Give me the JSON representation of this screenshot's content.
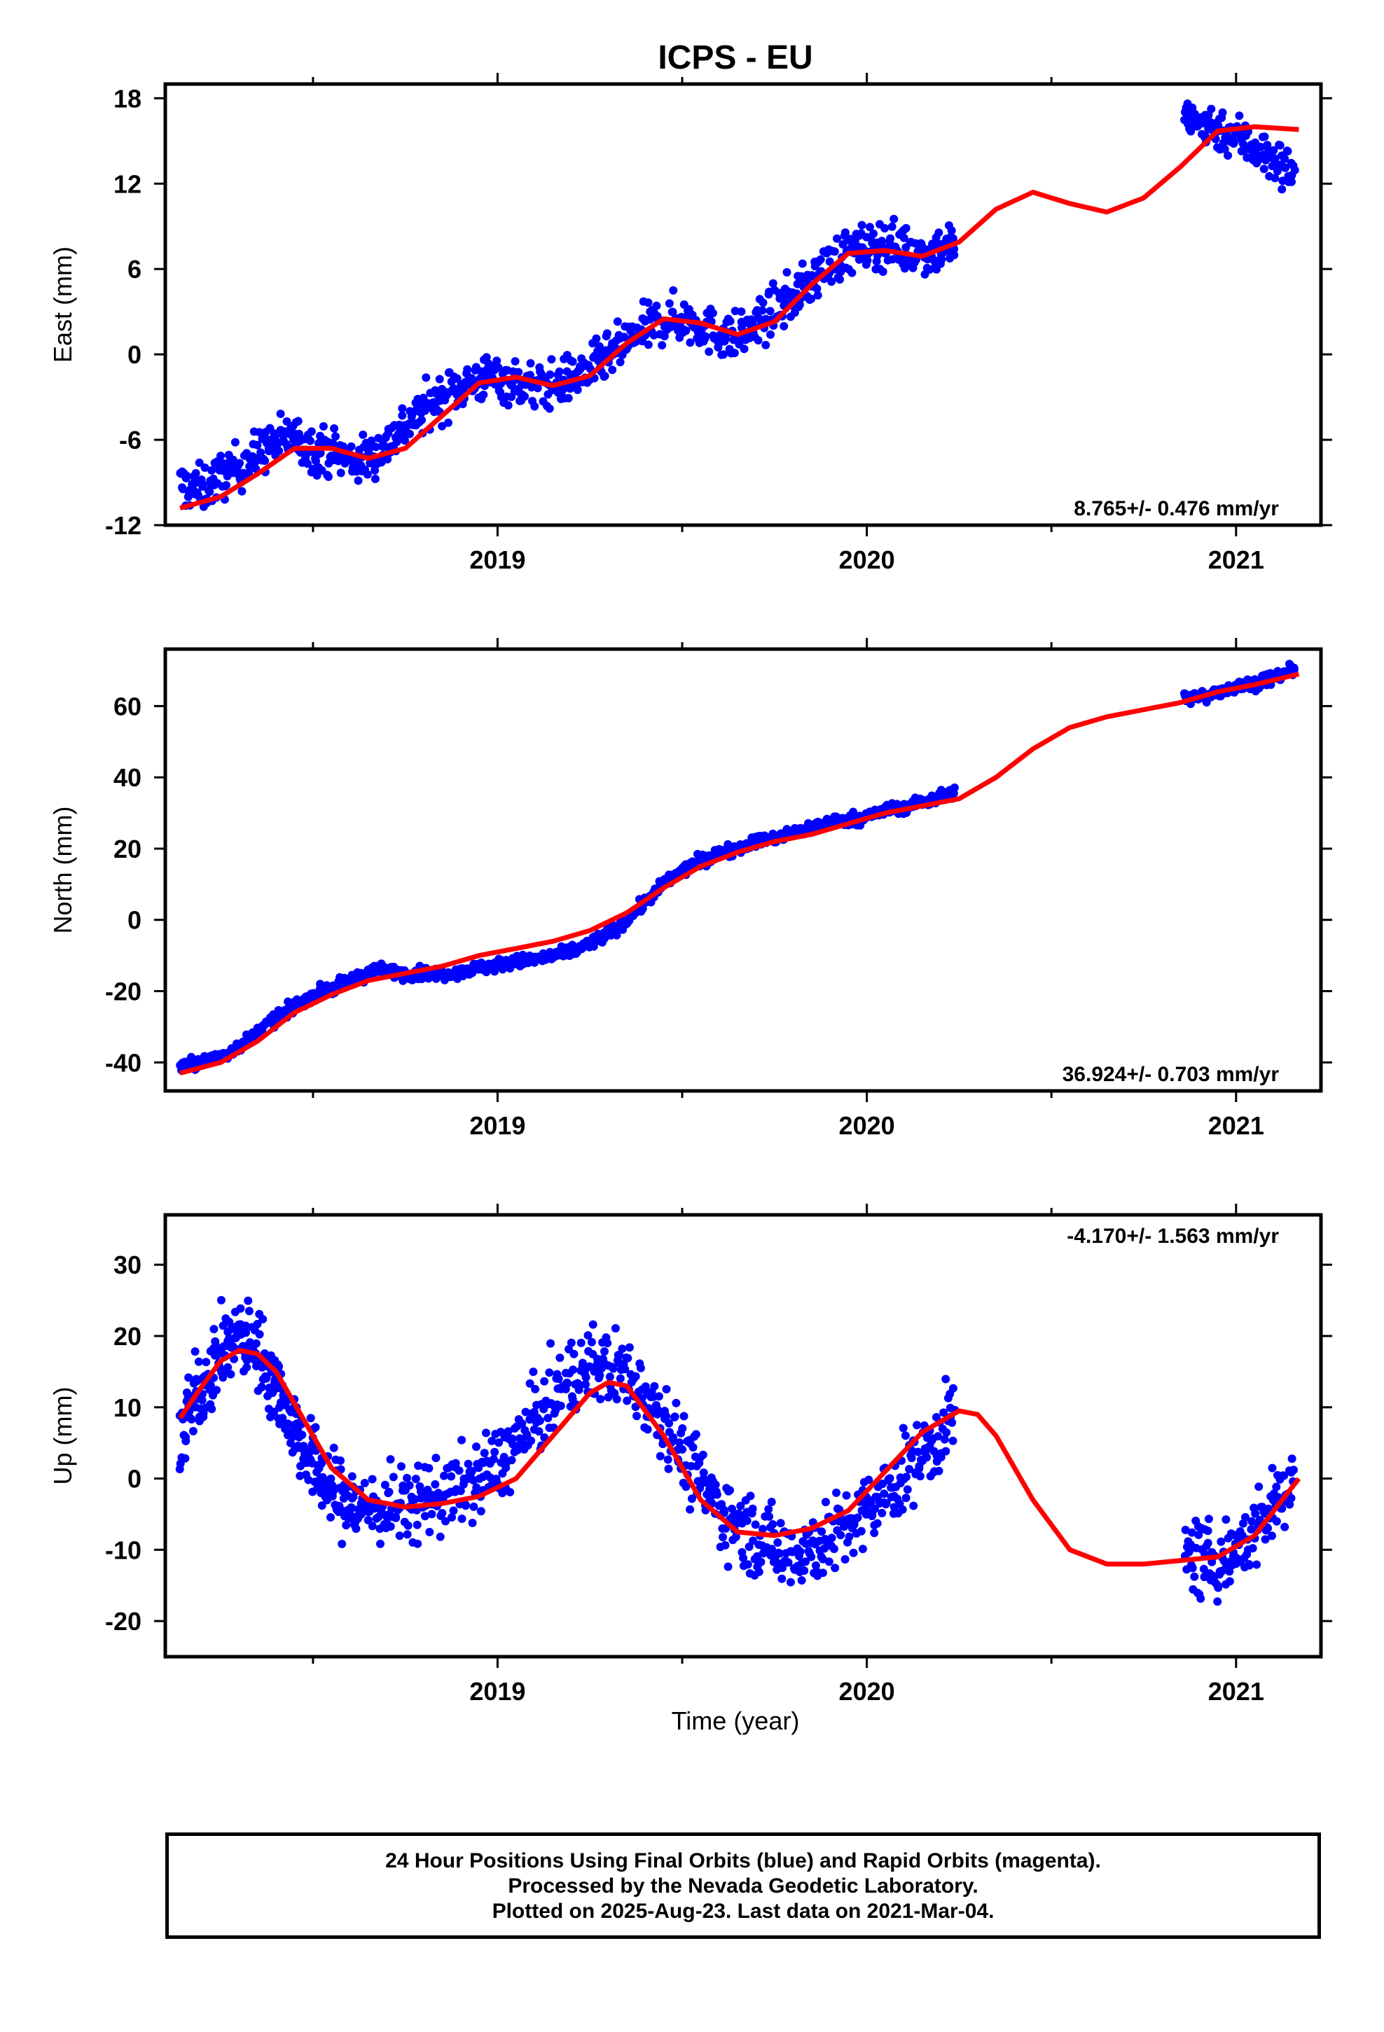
{
  "title": "ICPS - EU",
  "xlabel": "Time (year)",
  "footer": {
    "line1": "24 Hour Positions Using Final Orbits (blue) and Rapid Orbits (magenta).",
    "line2": "Processed by the Nevada Geodetic Laboratory.",
    "line3": "Plotted on 2025-Aug-23. Last data on 2021-Mar-04."
  },
  "colors": {
    "points": "#0000ff",
    "model": "#ff0000",
    "axis": "#000000"
  },
  "chart_data": [
    {
      "type": "scatter",
      "ylabel": "East (mm)",
      "rate_label": "8.765+/- 0.476 mm/yr",
      "xlim": [
        2018.1,
        2021.23
      ],
      "ylim": [
        -12,
        19
      ],
      "yticks": [
        -12,
        -6,
        0,
        6,
        12,
        18
      ],
      "xticks": [
        2019,
        2020,
        2021
      ],
      "series": [
        {
          "values": [
            [
              2018.14,
              -9.2
            ],
            [
              2018.2,
              -9.5
            ],
            [
              2018.26,
              -8.4
            ],
            [
              2018.32,
              -7.6
            ],
            [
              2018.38,
              -6.4
            ],
            [
              2018.44,
              -5.8
            ],
            [
              2018.5,
              -6.6
            ],
            [
              2018.56,
              -6.9
            ],
            [
              2018.62,
              -7.6
            ],
            [
              2018.68,
              -6.8
            ],
            [
              2018.74,
              -5.2
            ],
            [
              2018.8,
              -3.9
            ],
            [
              2018.86,
              -2.8
            ],
            [
              2018.92,
              -2.0
            ],
            [
              2018.98,
              -1.6
            ],
            [
              2019.04,
              -1.9
            ],
            [
              2019.1,
              -2.3
            ],
            [
              2019.16,
              -2.1
            ],
            [
              2019.22,
              -1.4
            ],
            [
              2019.28,
              -0.6
            ],
            [
              2019.34,
              0.6
            ],
            [
              2019.4,
              1.8
            ],
            [
              2019.46,
              2.5
            ],
            [
              2019.52,
              2.4
            ],
            [
              2019.58,
              1.6
            ],
            [
              2019.64,
              1.2
            ],
            [
              2019.7,
              2.0
            ],
            [
              2019.76,
              3.3
            ],
            [
              2019.82,
              4.4
            ],
            [
              2019.88,
              6.0
            ],
            [
              2019.94,
              7.1
            ],
            [
              2020.0,
              7.5
            ],
            [
              2020.06,
              7.8
            ],
            [
              2020.12,
              7.3
            ],
            [
              2020.18,
              7.2
            ],
            [
              2020.24,
              7.9
            ],
            [
              2020.86,
              16.4
            ],
            [
              2020.92,
              16.2
            ],
            [
              2020.98,
              15.6
            ],
            [
              2021.04,
              14.8
            ],
            [
              2021.1,
              13.6
            ],
            [
              2021.16,
              12.8
            ]
          ]
        }
      ],
      "model": {
        "x": [
          2018.14,
          2018.25,
          2018.35,
          2018.45,
          2018.55,
          2018.65,
          2018.75,
          2018.85,
          2018.95,
          2019.05,
          2019.15,
          2019.25,
          2019.35,
          2019.45,
          2019.55,
          2019.65,
          2019.75,
          2019.85,
          2019.95,
          2020.05,
          2020.15,
          2020.25,
          2020.35,
          2020.45,
          2020.55,
          2020.65,
          2020.75,
          2020.85,
          2020.95,
          2021.05,
          2021.17
        ],
        "y": [
          -10.8,
          -10.0,
          -8.4,
          -6.6,
          -6.6,
          -7.3,
          -6.6,
          -4.3,
          -2.0,
          -1.6,
          -2.2,
          -1.5,
          0.8,
          2.5,
          2.2,
          1.4,
          2.3,
          4.9,
          7.1,
          7.3,
          6.9,
          7.9,
          10.2,
          11.4,
          10.6,
          10.0,
          11.0,
          13.2,
          15.7,
          16.0,
          15.8
        ]
      }
    },
    {
      "type": "scatter",
      "ylabel": "North (mm)",
      "rate_label": "36.924+/- 0.703 mm/yr",
      "xlim": [
        2018.1,
        2021.23
      ],
      "ylim": [
        -48,
        76
      ],
      "yticks": [
        -40,
        -20,
        0,
        20,
        40,
        60
      ],
      "xticks": [
        2019,
        2020,
        2021
      ],
      "series": [
        {
          "values": [
            [
              2018.14,
              -41
            ],
            [
              2018.2,
              -40
            ],
            [
              2018.26,
              -38
            ],
            [
              2018.32,
              -34
            ],
            [
              2018.38,
              -29
            ],
            [
              2018.44,
              -25
            ],
            [
              2018.5,
              -21
            ],
            [
              2018.56,
              -19
            ],
            [
              2018.62,
              -16
            ],
            [
              2018.68,
              -14
            ],
            [
              2018.74,
              -15
            ],
            [
              2018.8,
              -15
            ],
            [
              2018.86,
              -15
            ],
            [
              2018.92,
              -14
            ],
            [
              2018.98,
              -13
            ],
            [
              2019.04,
              -12
            ],
            [
              2019.1,
              -11
            ],
            [
              2019.16,
              -10
            ],
            [
              2019.22,
              -8
            ],
            [
              2019.28,
              -5
            ],
            [
              2019.34,
              -1
            ],
            [
              2019.4,
              5
            ],
            [
              2019.46,
              11
            ],
            [
              2019.52,
              15
            ],
            [
              2019.58,
              18
            ],
            [
              2019.64,
              20
            ],
            [
              2019.7,
              22
            ],
            [
              2019.76,
              23
            ],
            [
              2019.82,
              25
            ],
            [
              2019.88,
              27
            ],
            [
              2019.94,
              28
            ],
            [
              2020.0,
              29
            ],
            [
              2020.06,
              31
            ],
            [
              2020.12,
              32
            ],
            [
              2020.18,
              34
            ],
            [
              2020.24,
              36
            ],
            [
              2020.86,
              62
            ],
            [
              2020.92,
              63
            ],
            [
              2020.98,
              65
            ],
            [
              2021.04,
              66
            ],
            [
              2021.1,
              68
            ],
            [
              2021.16,
              70
            ]
          ]
        }
      ],
      "model": {
        "x": [
          2018.14,
          2018.25,
          2018.35,
          2018.45,
          2018.55,
          2018.65,
          2018.75,
          2018.85,
          2018.95,
          2019.05,
          2019.15,
          2019.25,
          2019.35,
          2019.45,
          2019.55,
          2019.65,
          2019.75,
          2019.85,
          2019.95,
          2020.05,
          2020.15,
          2020.25,
          2020.35,
          2020.45,
          2020.55,
          2020.65,
          2020.75,
          2020.85,
          2020.95,
          2021.05,
          2021.17
        ],
        "y": [
          -43,
          -40,
          -34,
          -26,
          -21,
          -17,
          -15,
          -13,
          -10,
          -8,
          -6,
          -3,
          2,
          9,
          15,
          19,
          22,
          24,
          27,
          30,
          32,
          34,
          40,
          48,
          54,
          57,
          59,
          61,
          64,
          66,
          69
        ]
      }
    },
    {
      "type": "scatter",
      "ylabel": "Up (mm)",
      "xlabel": "Time (year)",
      "rate_label": "-4.170+/- 1.563 mm/yr",
      "xlim": [
        2018.1,
        2021.23
      ],
      "ylim": [
        -25,
        37
      ],
      "yticks": [
        -20,
        -10,
        0,
        10,
        20,
        30
      ],
      "xticks": [
        2019,
        2020,
        2021
      ],
      "series": [
        {
          "values": [
            [
              2018.14,
              6
            ],
            [
              2018.18,
              11
            ],
            [
              2018.22,
              15
            ],
            [
              2018.26,
              18
            ],
            [
              2018.3,
              20
            ],
            [
              2018.34,
              19
            ],
            [
              2018.38,
              15
            ],
            [
              2018.42,
              11
            ],
            [
              2018.46,
              6
            ],
            [
              2018.5,
              2
            ],
            [
              2018.54,
              -1
            ],
            [
              2018.58,
              -3
            ],
            [
              2018.62,
              -4
            ],
            [
              2018.68,
              -4
            ],
            [
              2018.74,
              -4
            ],
            [
              2018.8,
              -3
            ],
            [
              2018.86,
              -2
            ],
            [
              2018.92,
              -1
            ],
            [
              2018.98,
              1
            ],
            [
              2019.04,
              4
            ],
            [
              2019.1,
              8
            ],
            [
              2019.16,
              12
            ],
            [
              2019.22,
              15
            ],
            [
              2019.28,
              16
            ],
            [
              2019.34,
              15
            ],
            [
              2019.4,
              12
            ],
            [
              2019.46,
              8
            ],
            [
              2019.52,
              2
            ],
            [
              2019.58,
              -3
            ],
            [
              2019.64,
              -6
            ],
            [
              2019.7,
              -8
            ],
            [
              2019.76,
              -10
            ],
            [
              2019.82,
              -10
            ],
            [
              2019.88,
              -9
            ],
            [
              2019.94,
              -7
            ],
            [
              2020.0,
              -5
            ],
            [
              2020.06,
              -2
            ],
            [
              2020.12,
              2
            ],
            [
              2020.18,
              5
            ],
            [
              2020.24,
              9
            ],
            [
              2020.86,
              -10
            ],
            [
              2020.92,
              -12
            ],
            [
              2020.98,
              -11
            ],
            [
              2021.04,
              -8
            ],
            [
              2021.1,
              -4
            ],
            [
              2021.16,
              1
            ]
          ]
        }
      ],
      "model": {
        "x": [
          2018.14,
          2018.2,
          2018.25,
          2018.3,
          2018.35,
          2018.4,
          2018.45,
          2018.55,
          2018.65,
          2018.75,
          2018.85,
          2018.95,
          2019.05,
          2019.15,
          2019.25,
          2019.3,
          2019.35,
          2019.45,
          2019.55,
          2019.65,
          2019.75,
          2019.85,
          2019.95,
          2020.05,
          2020.15,
          2020.25,
          2020.3,
          2020.35,
          2020.45,
          2020.55,
          2020.65,
          2020.75,
          2020.85,
          2020.95,
          2021.05,
          2021.17
        ],
        "y": [
          8.5,
          13,
          16.5,
          18,
          17.5,
          15,
          10.5,
          1.5,
          -3,
          -4,
          -3.5,
          -2.5,
          0,
          6,
          12,
          13.5,
          13,
          6,
          -3,
          -7.5,
          -8,
          -7,
          -4.5,
          1,
          6.5,
          9.5,
          9,
          6,
          -3,
          -10,
          -12,
          -12,
          -11.5,
          -11,
          -8,
          0
        ]
      }
    }
  ]
}
